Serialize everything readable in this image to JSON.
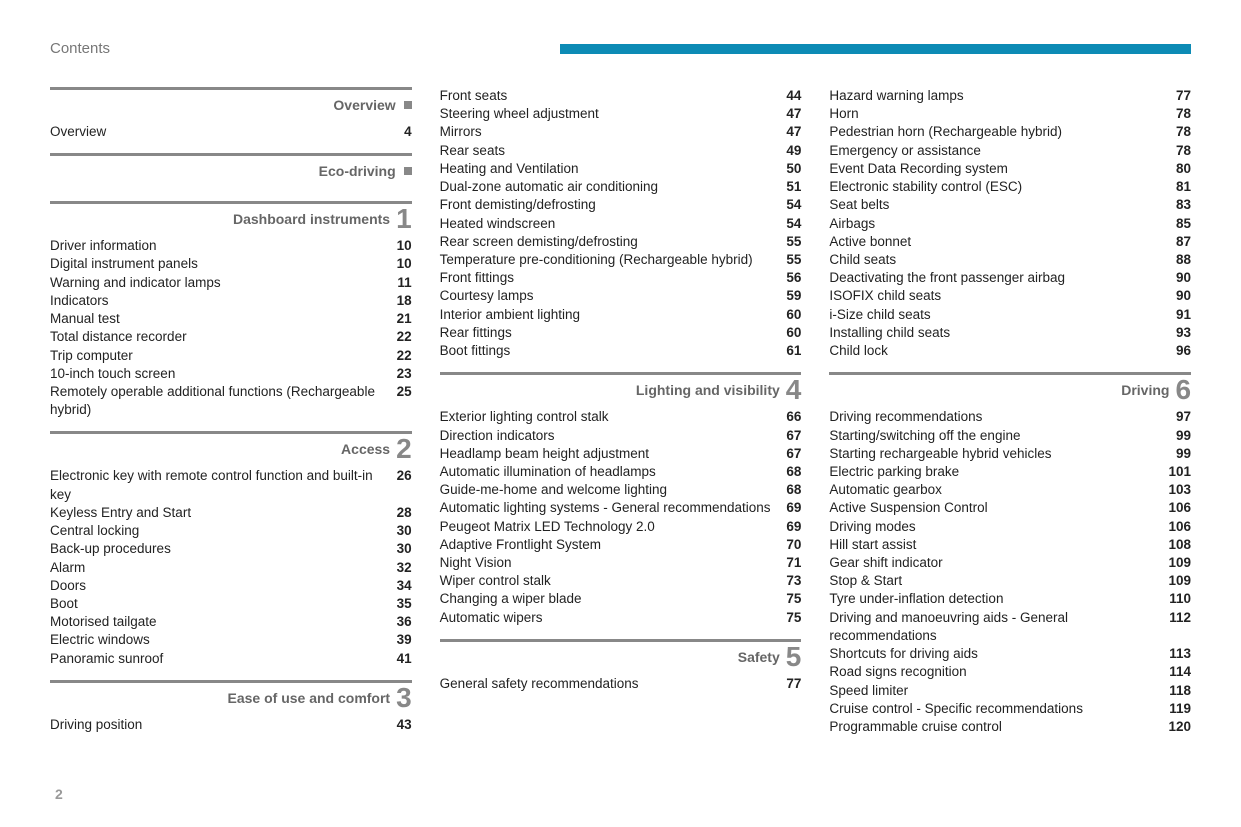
{
  "header_label": "Contents",
  "page_number": "2",
  "accent_color": "#0d8bb5",
  "columns": [
    [
      {
        "type": "section",
        "title": "Overview",
        "marker": "square"
      },
      {
        "type": "entry",
        "label": "Overview",
        "page": "4"
      },
      {
        "type": "spacer"
      },
      {
        "type": "section",
        "title": "Eco-driving",
        "marker": "square"
      },
      {
        "type": "spacer"
      },
      {
        "type": "section",
        "title": "Dashboard instruments",
        "marker": "1"
      },
      {
        "type": "entry",
        "label": "Driver information",
        "page": "10"
      },
      {
        "type": "entry",
        "label": "Digital instrument panels",
        "page": "10"
      },
      {
        "type": "entry",
        "label": "Warning and indicator lamps",
        "page": "11"
      },
      {
        "type": "entry",
        "label": "Indicators",
        "page": "18"
      },
      {
        "type": "entry",
        "label": "Manual test",
        "page": "21"
      },
      {
        "type": "entry",
        "label": "Total distance recorder",
        "page": "22"
      },
      {
        "type": "entry",
        "label": "Trip computer",
        "page": "22"
      },
      {
        "type": "entry",
        "label": "10-inch touch screen",
        "page": "23"
      },
      {
        "type": "entry",
        "label": "Remotely operable additional functions (Rechargeable hybrid)",
        "page": "25"
      },
      {
        "type": "spacer"
      },
      {
        "type": "section",
        "title": "Access",
        "marker": "2"
      },
      {
        "type": "entry",
        "label": "Electronic key with remote control function and built-in key",
        "page": "26"
      },
      {
        "type": "entry",
        "label": "Keyless Entry and Start",
        "page": "28"
      },
      {
        "type": "entry",
        "label": "Central locking",
        "page": "30"
      },
      {
        "type": "entry",
        "label": "Back-up procedures",
        "page": "30"
      },
      {
        "type": "entry",
        "label": "Alarm",
        "page": "32"
      },
      {
        "type": "entry",
        "label": "Doors",
        "page": "34"
      },
      {
        "type": "entry",
        "label": "Boot",
        "page": "35"
      },
      {
        "type": "entry",
        "label": "Motorised tailgate",
        "page": "36"
      },
      {
        "type": "entry",
        "label": "Electric windows",
        "page": "39"
      },
      {
        "type": "entry",
        "label": "Panoramic sunroof",
        "page": "41"
      },
      {
        "type": "spacer"
      },
      {
        "type": "section",
        "title": "Ease of use and comfort",
        "marker": "3"
      },
      {
        "type": "entry",
        "label": "Driving position",
        "page": "43"
      }
    ],
    [
      {
        "type": "entry",
        "label": "Front seats",
        "page": "44"
      },
      {
        "type": "entry",
        "label": "Steering wheel adjustment",
        "page": "47"
      },
      {
        "type": "entry",
        "label": "Mirrors",
        "page": "47"
      },
      {
        "type": "entry",
        "label": "Rear seats",
        "page": "49"
      },
      {
        "type": "entry",
        "label": "Heating and Ventilation",
        "page": "50"
      },
      {
        "type": "entry",
        "label": "Dual-zone automatic air conditioning",
        "page": "51"
      },
      {
        "type": "entry",
        "label": "Front demisting/defrosting",
        "page": "54"
      },
      {
        "type": "entry",
        "label": "Heated windscreen",
        "page": "54"
      },
      {
        "type": "entry",
        "label": "Rear screen demisting/defrosting",
        "page": "55"
      },
      {
        "type": "entry",
        "label": "Temperature pre-conditioning (Rechargeable hybrid)",
        "page": "55"
      },
      {
        "type": "entry",
        "label": "Front fittings",
        "page": "56"
      },
      {
        "type": "entry",
        "label": "Courtesy lamps",
        "page": "59"
      },
      {
        "type": "entry",
        "label": "Interior ambient lighting",
        "page": "60"
      },
      {
        "type": "entry",
        "label": "Rear fittings",
        "page": "60"
      },
      {
        "type": "entry",
        "label": "Boot fittings",
        "page": "61"
      },
      {
        "type": "spacer"
      },
      {
        "type": "section",
        "title": "Lighting and visibility",
        "marker": "4"
      },
      {
        "type": "entry",
        "label": "Exterior lighting control stalk",
        "page": "66"
      },
      {
        "type": "entry",
        "label": "Direction indicators",
        "page": "67"
      },
      {
        "type": "entry",
        "label": "Headlamp beam height adjustment",
        "page": "67"
      },
      {
        "type": "entry",
        "label": "Automatic illumination of headlamps",
        "page": "68"
      },
      {
        "type": "entry",
        "label": "Guide-me-home and welcome lighting",
        "page": "68"
      },
      {
        "type": "entry",
        "label": "Automatic lighting systems - General recommendations",
        "page": "69"
      },
      {
        "type": "entry",
        "label": "Peugeot Matrix LED Technology 2.0",
        "page": "69"
      },
      {
        "type": "entry",
        "label": "Adaptive Frontlight System",
        "page": "70"
      },
      {
        "type": "entry",
        "label": "Night Vision",
        "page": "71"
      },
      {
        "type": "entry",
        "label": "Wiper control stalk",
        "page": "73"
      },
      {
        "type": "entry",
        "label": "Changing a wiper blade",
        "page": "75"
      },
      {
        "type": "entry",
        "label": "Automatic wipers",
        "page": "75"
      },
      {
        "type": "spacer"
      },
      {
        "type": "section",
        "title": "Safety",
        "marker": "5"
      },
      {
        "type": "entry",
        "label": "General safety recommendations",
        "page": "77"
      }
    ],
    [
      {
        "type": "entry",
        "label": "Hazard warning lamps",
        "page": "77"
      },
      {
        "type": "entry",
        "label": "Horn",
        "page": "78"
      },
      {
        "type": "entry",
        "label": "Pedestrian horn (Rechargeable hybrid)",
        "page": "78"
      },
      {
        "type": "entry",
        "label": "Emergency or assistance",
        "page": "78"
      },
      {
        "type": "entry",
        "label": "Event Data Recording system",
        "page": "80"
      },
      {
        "type": "entry",
        "label": "Electronic stability control (ESC)",
        "page": "81"
      },
      {
        "type": "entry",
        "label": "Seat belts",
        "page": "83"
      },
      {
        "type": "entry",
        "label": "Airbags",
        "page": "85"
      },
      {
        "type": "entry",
        "label": "Active bonnet",
        "page": "87"
      },
      {
        "type": "entry",
        "label": "Child seats",
        "page": "88"
      },
      {
        "type": "entry",
        "label": "Deactivating the front passenger airbag",
        "page": "90"
      },
      {
        "type": "entry",
        "label": "ISOFIX child seats",
        "page": "90"
      },
      {
        "type": "entry",
        "label": "i-Size child seats",
        "page": "91"
      },
      {
        "type": "entry",
        "label": "Installing child seats",
        "page": "93"
      },
      {
        "type": "entry",
        "label": "Child lock",
        "page": "96"
      },
      {
        "type": "spacer"
      },
      {
        "type": "section",
        "title": "Driving",
        "marker": "6"
      },
      {
        "type": "entry",
        "label": "Driving recommendations",
        "page": "97"
      },
      {
        "type": "entry",
        "label": "Starting/switching off the engine",
        "page": "99"
      },
      {
        "type": "entry",
        "label": "Starting rechargeable hybrid vehicles",
        "page": "99"
      },
      {
        "type": "entry",
        "label": "Electric parking brake",
        "page": "101"
      },
      {
        "type": "entry",
        "label": "Automatic gearbox",
        "page": "103"
      },
      {
        "type": "entry",
        "label": "Active Suspension Control",
        "page": "106"
      },
      {
        "type": "entry",
        "label": "Driving modes",
        "page": "106"
      },
      {
        "type": "entry",
        "label": "Hill start assist",
        "page": "108"
      },
      {
        "type": "entry",
        "label": "Gear shift indicator",
        "page": "109"
      },
      {
        "type": "entry",
        "label": "Stop & Start",
        "page": "109"
      },
      {
        "type": "entry",
        "label": "Tyre under-inflation detection",
        "page": "110"
      },
      {
        "type": "entry",
        "label": "Driving and manoeuvring aids - General recommendations",
        "page": "112"
      },
      {
        "type": "entry",
        "label": "Shortcuts for driving aids",
        "page": "113"
      },
      {
        "type": "entry",
        "label": "Road signs recognition",
        "page": "114"
      },
      {
        "type": "entry",
        "label": "Speed limiter",
        "page": "118"
      },
      {
        "type": "entry",
        "label": "Cruise control - Specific recommendations",
        "page": "119"
      },
      {
        "type": "entry",
        "label": "Programmable cruise control",
        "page": "120"
      }
    ]
  ]
}
